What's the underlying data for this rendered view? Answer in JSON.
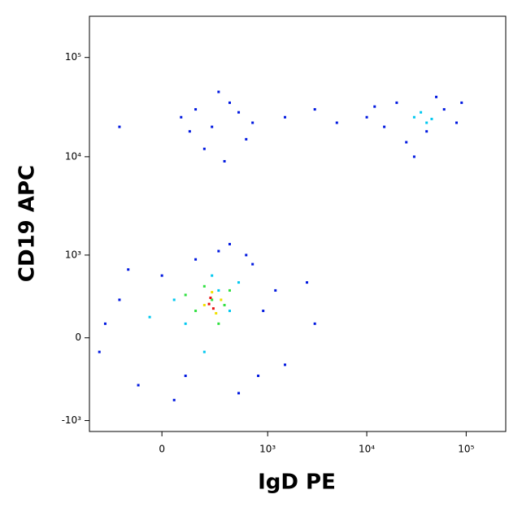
{
  "chart_data": {
    "type": "scatter",
    "x_label": "IgD PE",
    "y_label": "CD19 APC",
    "xscale": "biexponential",
    "yscale": "biexponential",
    "xlim": [
      -450,
      250000
    ],
    "ylim": [
      -1300,
      260000
    ],
    "xticks": [
      0,
      {
        "value": 1000,
        "label": "10³"
      },
      {
        "value": 10000,
        "label": "10⁴"
      },
      {
        "value": 100000,
        "label": "10⁵"
      }
    ],
    "yticks": [
      {
        "value": -1000,
        "label": "-10³"
      },
      0,
      {
        "value": 1000,
        "label": "10³"
      },
      {
        "value": 10000,
        "label": "10⁴"
      },
      {
        "value": 100000,
        "label": "10⁵"
      }
    ],
    "series": [
      {
        "color": "#0018e0",
        "x": [
          -300,
          -200,
          -100,
          0,
          50,
          150,
          300,
          500,
          700,
          900,
          1200,
          1500,
          2500,
          3000,
          -350,
          400,
          100,
          800,
          600,
          -150,
          80,
          150,
          250,
          400,
          600,
          300,
          120,
          500,
          200,
          700,
          -200,
          350,
          10000,
          15000,
          20000,
          40000,
          60000,
          80000,
          25000,
          50000,
          12000,
          90000,
          5000,
          3000,
          1500,
          30000
        ],
        "y": [
          100,
          300,
          -400,
          600,
          -600,
          900,
          1100,
          -500,
          800,
          200,
          400,
          -200,
          500,
          100,
          -100,
          1300,
          -300,
          -300,
          1000,
          700,
          25000,
          30000,
          20000,
          35000,
          15000,
          45000,
          18000,
          28000,
          12000,
          22000,
          20000,
          9000,
          25000,
          20000,
          35000,
          18000,
          30000,
          22000,
          14000,
          40000,
          32000,
          35000,
          22000,
          30000,
          25000,
          10000
        ]
      },
      {
        "color": "#00c8f0",
        "x": [
          100,
          300,
          200,
          400,
          50,
          500,
          250,
          -50,
          30000,
          40000,
          35000,
          45000
        ],
        "y": [
          100,
          400,
          -100,
          200,
          300,
          500,
          600,
          150,
          25000,
          22000,
          28000,
          24000
        ]
      },
      {
        "color": "#30e040",
        "x": [
          150,
          250,
          300,
          200,
          350,
          100,
          400
        ],
        "y": [
          200,
          300,
          100,
          450,
          250,
          350,
          400
        ]
      },
      {
        "color": "#f0e000",
        "x": [
          200,
          280,
          250,
          320
        ],
        "y": [
          250,
          180,
          380,
          300
        ]
      },
      {
        "color": "#e81010",
        "x": [
          230,
          260,
          240
        ],
        "y": [
          260,
          220,
          320
        ]
      }
    ]
  }
}
